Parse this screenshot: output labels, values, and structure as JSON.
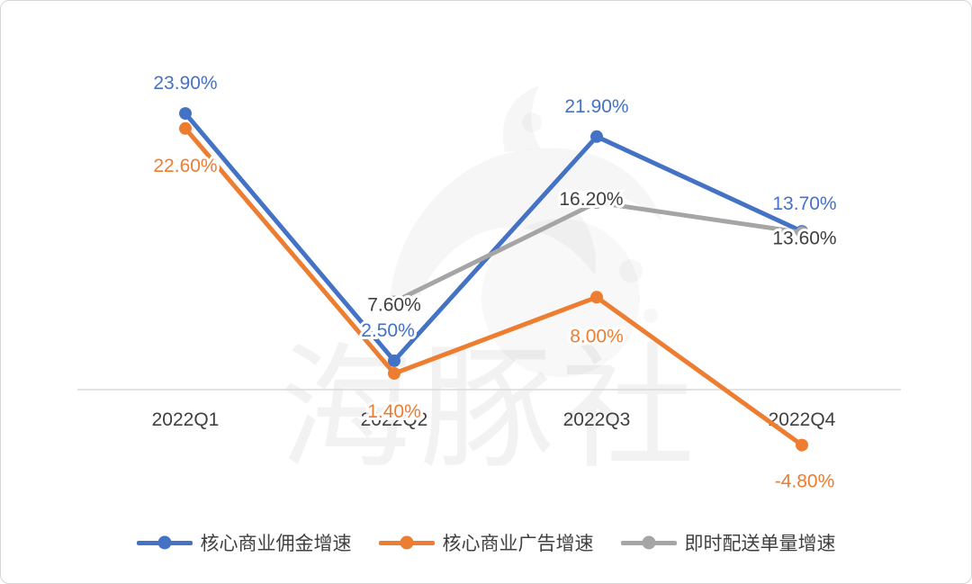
{
  "chart_data": {
    "type": "line",
    "categories": [
      "2022Q1",
      "2022Q2",
      "2022Q3",
      "2022Q4"
    ],
    "series": [
      {
        "name": "核心商业佣金增速",
        "color": "#4472C4",
        "label_color": "#4472C4",
        "values": [
          23.9,
          2.5,
          21.9,
          13.7
        ],
        "labels": [
          "23.90%",
          "2.50%",
          "21.90%",
          "13.70%"
        ]
      },
      {
        "name": "核心商业广告增速",
        "color": "#ED7D31",
        "label_color": "#ED7D31",
        "values": [
          22.6,
          1.4,
          8.0,
          -4.8
        ],
        "labels": [
          "22.60%",
          "1.40%",
          "8.00%",
          "-4.80%"
        ]
      },
      {
        "name": "即时配送单量增速",
        "color": "#A5A5A5",
        "label_color": "#404040",
        "values": [
          null,
          7.6,
          16.2,
          13.6
        ],
        "labels": [
          null,
          "7.60%",
          "16.20%",
          "13.60%"
        ]
      }
    ],
    "ylim": [
      -8,
      26
    ],
    "grid": false,
    "legend_position": "bottom",
    "axis_color": "#D9D9D9",
    "text_color": "#404040"
  },
  "watermark": {
    "text": "海豚社"
  }
}
